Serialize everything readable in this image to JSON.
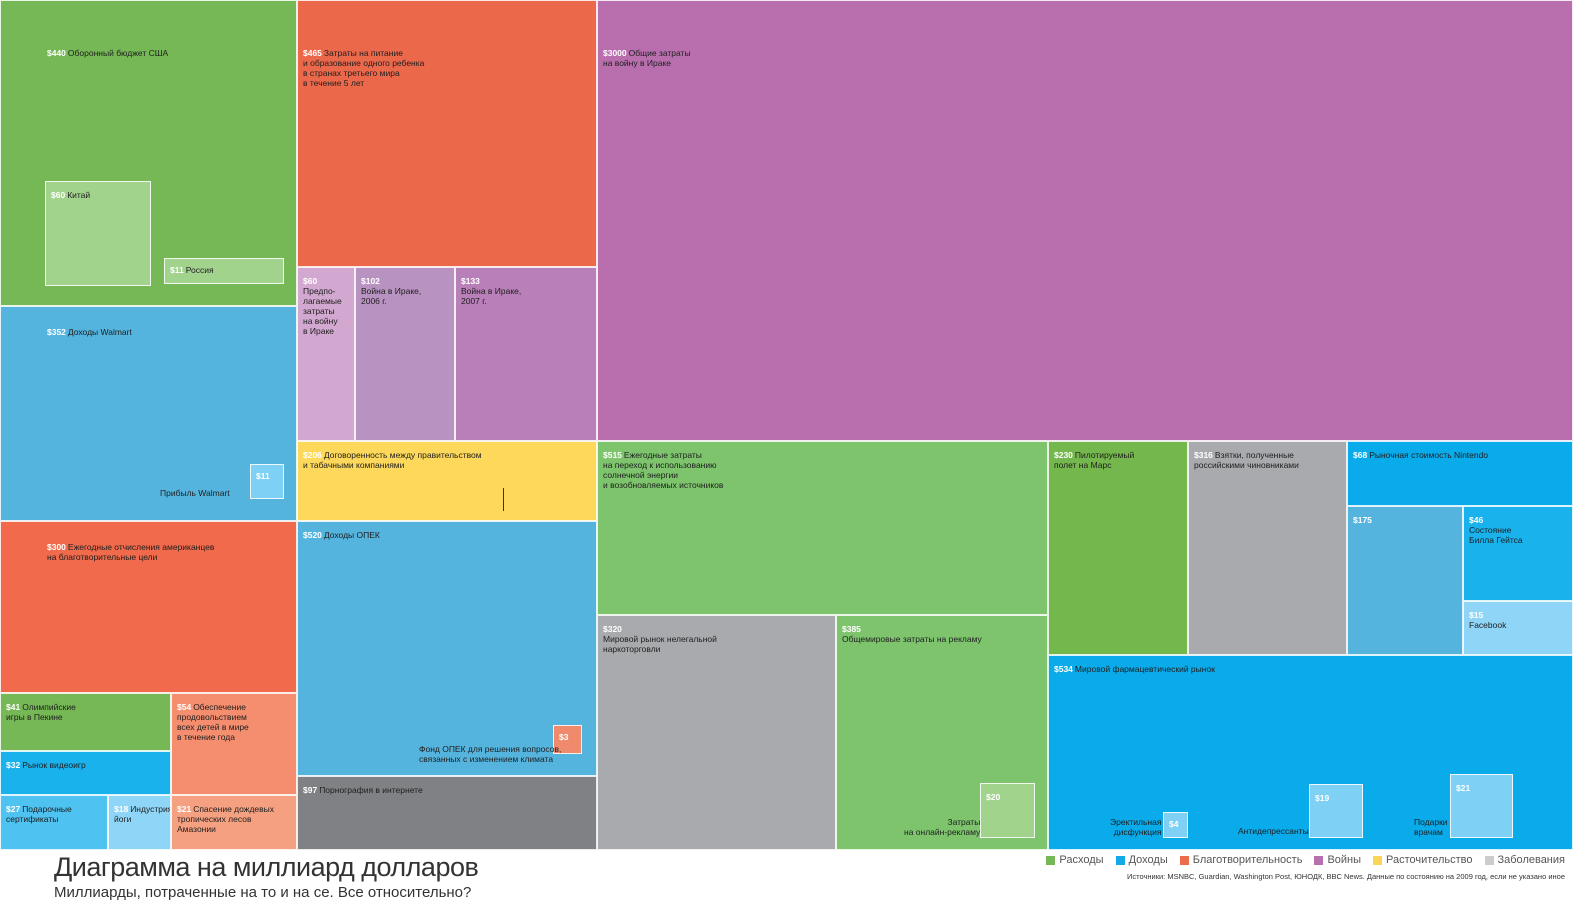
{
  "title": "Диаграмма на миллиард долларов",
  "subtitle": "Миллиарды, потраченные на то и на се. Все относительно?",
  "sources": "Источники: MSNBC, Guardian, Washington Post, ЮНОДК, BBC News. Данные по состоянию на 2009 год, если не указано иное",
  "legend": [
    {
      "label": "Расходы",
      "color": "#76b856"
    },
    {
      "label": "Доходы",
      "color": "#12a9e8"
    },
    {
      "label": "Благотворительность",
      "color": "#ed6c4c"
    },
    {
      "label": "Войны",
      "color": "#b86fae"
    },
    {
      "label": "Расточительство",
      "color": "#fbd556"
    },
    {
      "label": "Заболевания",
      "color": "#cccccc"
    }
  ],
  "chart_data": {
    "type": "treemap",
    "title": "Диаграмма на миллиард долларов",
    "subtitle": "Миллиарды, потраченные на то и на се. Все относительно?",
    "unit": "млрд $",
    "items": [
      {
        "id": "us-defense",
        "value": 440,
        "value_label": "$440",
        "label": "Оборонный бюджет США",
        "category": "Расходы",
        "color": "#76b856"
      },
      {
        "id": "china",
        "value": 60,
        "value_label": "$60",
        "label": "Китай",
        "category": "Расходы",
        "color": "#a2d38d"
      },
      {
        "id": "russia",
        "value": 11,
        "value_label": "$11",
        "label": "Россия",
        "category": "Расходы",
        "color": "#a2d38d"
      },
      {
        "id": "walmart-revenue",
        "value": 352,
        "value_label": "$352",
        "label": "Доходы Walmart",
        "category": "Доходы",
        "color": "#55b4de"
      },
      {
        "id": "walmart-profit",
        "value": 11,
        "value_label": "$11",
        "label": "",
        "sub": "Прибыль Walmart",
        "category": "Доходы",
        "color": "#7fd0f5"
      },
      {
        "id": "us-charity",
        "value": 300,
        "value_label": "$300",
        "label": "Ежегодные отчисления американцев\nна благотворительные цели",
        "category": "Благотворительность",
        "color": "#f06a4b"
      },
      {
        "id": "olympics",
        "value": 41,
        "value_label": "$41",
        "label": "Олимпийские\nигры в Пекине",
        "category": "Расходы",
        "color": "#76b856"
      },
      {
        "id": "food-children",
        "value": 54,
        "value_label": "$54",
        "label": "Обеспечение\nпродовольствием\nвсех детей в мире\nв течение года",
        "category": "Благотворительность",
        "color": "#f58e6f"
      },
      {
        "id": "video-games",
        "value": 32,
        "value_label": "$32",
        "label": "Рынок видеоигр",
        "category": "Доходы",
        "color": "#1ab2ec"
      },
      {
        "id": "gift-cards",
        "value": 27,
        "value_label": "$27",
        "label": "Подарочные\nсертификаты",
        "category": "Доходы",
        "color": "#4ec2f0"
      },
      {
        "id": "yoga",
        "value": 18,
        "value_label": "$18",
        "label": "Индустрия\nйоги",
        "category": "Доходы",
        "color": "#8fd5f7"
      },
      {
        "id": "rainforest",
        "value": 21,
        "value_label": "$21",
        "label": "Спасение дождевых\nтропических лесов\nАмазонии",
        "category": "Благотворительность",
        "color": "#f5a080"
      },
      {
        "id": "third-world-children",
        "value": 465,
        "value_label": "$465",
        "label": "Затраты на питание\nи образование одного ребенка\nв странах третьего мира\nв течение 5 лет",
        "category": "Благотворительность",
        "color": "#ec684b"
      },
      {
        "id": "iraq-planned",
        "value": 60,
        "value_label": "$60",
        "label": "",
        "sub": "Предпо-\nлагаемые\nзатраты\nна войну\nв Ираке",
        "category": "Войны",
        "color": "#d2a7d0"
      },
      {
        "id": "iraq-2006",
        "value": 102,
        "value_label": "$102",
        "label": "",
        "sub": "Война в Ираке,\n2006 г.",
        "category": "Войны",
        "color": "#b893c1"
      },
      {
        "id": "iraq-2007",
        "value": 133,
        "value_label": "$133",
        "label": "",
        "sub": "Война в Ираке,\n2007 г.",
        "category": "Войны",
        "color": "#b87fb8"
      },
      {
        "id": "tobacco",
        "value": 206,
        "value_label": "$206",
        "label": "Договоренность между правительством\nи табачными компаниями",
        "category": "Расточительство",
        "color": "#fdd85a"
      },
      {
        "id": "opec-revenue",
        "value": 520,
        "value_label": "$520",
        "label": "Доходы ОПЕК",
        "category": "Доходы",
        "color": "#55b4de"
      },
      {
        "id": "opec-climate",
        "value": 3,
        "value_label": "$3",
        "label": "",
        "sub": "Фонд ОПЕК для решения вопросов,\nсвязанных с изменением климата",
        "category": "Благотворительность",
        "color": "#f08a6c"
      },
      {
        "id": "internet-porn",
        "value": 97,
        "value_label": "$97",
        "label": "Порнография в интернете",
        "category": "Расточительство",
        "color": "#808184"
      },
      {
        "id": "iraq-total",
        "value": 3000,
        "value_label": "$3000",
        "label": "Общие затраты\nна войну в Ираке",
        "category": "Войны",
        "color": "#b96fae"
      },
      {
        "id": "solar",
        "value": 515,
        "value_label": "$515",
        "label": "Ежегодные затраты\nна переход к использованию\nсолнечной энергии\nи возобновляемых источников",
        "category": "Расходы",
        "color": "#7dc46d"
      },
      {
        "id": "drug-trade",
        "value": 320,
        "value_label": "$320",
        "label": "",
        "sub": "Мировой рынок нелегальной\nнаркоторговли",
        "category": "Заболевания",
        "color": "#a9aaad"
      },
      {
        "id": "advertising",
        "value": 385,
        "value_label": "$385",
        "label": "",
        "sub": "Общемировые затраты на рекламу",
        "category": "Расходы",
        "color": "#7dc46d"
      },
      {
        "id": "online-ads",
        "value": 20,
        "value_label": "$20",
        "label": "",
        "sub": "Затраты\nна онлайн-рекламу",
        "category": "Расходы",
        "color": "#a2d38d"
      },
      {
        "id": "mars",
        "value": 230,
        "value_label": "$230",
        "label": "Пилотируемый\nполет на Марс",
        "category": "Расходы",
        "color": "#74b74c"
      },
      {
        "id": "russia-bribes",
        "value": 316,
        "value_label": "$316",
        "label": "Взятки, полученные\nроссийскими чиновниками",
        "category": "Расточительство",
        "color": "#a9aaad"
      },
      {
        "id": "nintendo",
        "value": 68,
        "value_label": "$68",
        "label": "Рыночная стоимость Nintendo",
        "category": "Доходы",
        "color": "#0aabeb"
      },
      {
        "id": "unnamed-175",
        "value": 175,
        "value_label": "$175",
        "label": "",
        "category": "Доходы",
        "color": "#55b4de"
      },
      {
        "id": "gates",
        "value": 46,
        "value_label": "$46",
        "label": "",
        "sub": "Состояние\nБилла Гейтса",
        "category": "Доходы",
        "color": "#1ab2ec"
      },
      {
        "id": "facebook",
        "value": 15,
        "value_label": "$15",
        "label": "",
        "sub": "Facebook",
        "category": "Доходы",
        "color": "#8fd5f7"
      },
      {
        "id": "pharma",
        "value": 534,
        "value_label": "$534",
        "label": "Мировой фармацевтический рынок",
        "category": "Заболевания",
        "color": "#0aabeb"
      },
      {
        "id": "ed",
        "value": 4,
        "value_label": "$4",
        "label": "",
        "sub": "Эректильная\nдисфункция",
        "category": "Заболевания",
        "color": "#7fd0f5"
      },
      {
        "id": "antidepressants",
        "value": 19,
        "value_label": "$19",
        "label": "",
        "sub": "Антидепрессанты",
        "category": "Заболевания",
        "color": "#7fd0f5"
      },
      {
        "id": "doctor-gifts",
        "value": 21,
        "value_label": "$21",
        "label": "",
        "sub": "Подарки\nврачам",
        "category": "Заболевания",
        "color": "#7fd0f5"
      }
    ]
  }
}
